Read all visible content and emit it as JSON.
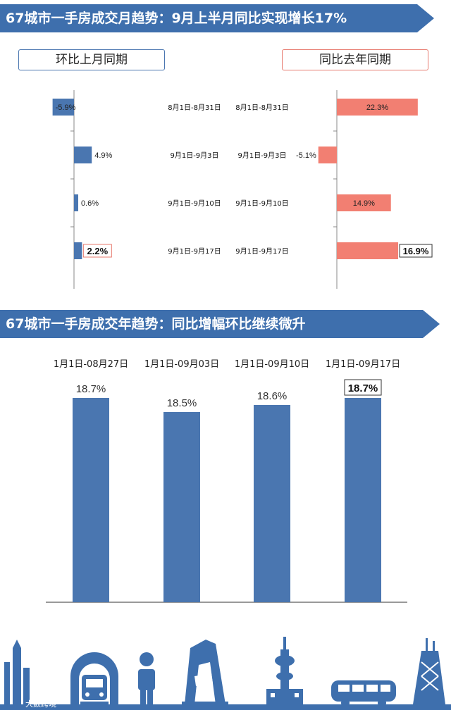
{
  "top_banner": {
    "title": "67城市一手房成交月趋势：9月上半月同比实现增长17%"
  },
  "bottom_banner": {
    "title": "67城市一手房成交年趋势：同比增幅环比继续微升"
  },
  "colors": {
    "banner": "#3e6fad",
    "mom_bar": "#4a76b0",
    "yoy_bar": "#f27f72",
    "year_bar": "#4a76b0"
  },
  "watermark": {
    "text": "大数跨境"
  },
  "skyline_icons": [
    "tower-icon",
    "train-icon",
    "person-icon",
    "building-icon",
    "tv-tower-icon",
    "bus-icon",
    "skyscraper-icon"
  ],
  "chart_data": [
    {
      "type": "bar",
      "orientation": "horizontal",
      "series": [
        {
          "name": "环比上月同期",
          "periods": [
            "8月1日-8月31日",
            "9月1日-9月3日",
            "9月1日-9月10日",
            "9月1日-9月17日"
          ],
          "values": [
            -5.9,
            4.9,
            0.6,
            2.2
          ],
          "labels": [
            "-5.9%",
            "4.9%",
            "0.6%",
            "2.2%"
          ],
          "highlight_index": 3
        },
        {
          "name": "同比去年同期",
          "periods": [
            "8月1日-8月31日",
            "9月1日-9月3日",
            "9月1日-9月10日",
            "9月1日-9月17日"
          ],
          "values": [
            22.3,
            -5.1,
            14.9,
            16.9
          ],
          "labels": [
            "22.3%",
            "-5.1%",
            "14.9%",
            "16.9%"
          ],
          "highlight_index": 3
        }
      ],
      "legend": "top"
    },
    {
      "type": "bar",
      "categories": [
        "1月1日-08月27日",
        "1月1日-09月03日",
        "1月1日-09月10日",
        "1月1日-09月17日"
      ],
      "values": [
        18.7,
        18.5,
        18.6,
        18.7
      ],
      "labels": [
        "18.7%",
        "18.5%",
        "18.6%",
        "18.7%"
      ],
      "highlight_index": 3,
      "title": ""
    }
  ]
}
